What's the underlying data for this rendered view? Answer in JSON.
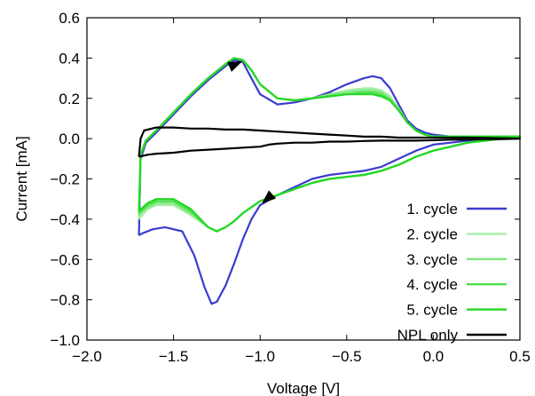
{
  "chart_data": {
    "type": "line",
    "xlabel": "Voltage [V]",
    "ylabel": "Current [mA]",
    "xlim": [
      -2.0,
      0.5
    ],
    "ylim": [
      -1.0,
      0.6
    ],
    "xticks": [
      "−2.0",
      "−1.5",
      "−1.0",
      "−0.5",
      "0.0",
      "0.5"
    ],
    "xtick_values": [
      -2.0,
      -1.5,
      -1.0,
      -0.5,
      0.0,
      0.5
    ],
    "yticks": [
      "−1.0",
      "−0.8",
      "−0.6",
      "−0.4",
      "−0.2",
      "0.0",
      "0.2",
      "0.4",
      "0.6"
    ],
    "ytick_values": [
      -1.0,
      -0.8,
      -0.6,
      -0.4,
      -0.2,
      0.0,
      0.2,
      0.4,
      0.6
    ],
    "grid": false,
    "legend_position": "bottom-right",
    "series": [
      {
        "name": "1. cycle",
        "color": "#3b3bd0",
        "x": [
          -1.7,
          -1.69,
          -1.66,
          -1.6,
          -1.5,
          -1.4,
          -1.3,
          -1.2,
          -1.15,
          -1.1,
          -1.05,
          -1.0,
          -0.9,
          -0.8,
          -0.7,
          -0.6,
          -0.5,
          -0.4,
          -0.35,
          -0.3,
          -0.25,
          -0.2,
          -0.15,
          -0.1,
          -0.05,
          0.0,
          0.1,
          0.2,
          0.3,
          0.4,
          0.5,
          0.4,
          0.3,
          0.2,
          0.1,
          0.0,
          -0.1,
          -0.2,
          -0.3,
          -0.4,
          -0.5,
          -0.6,
          -0.7,
          -0.8,
          -0.9,
          -1.0,
          -1.05,
          -1.1,
          -1.15,
          -1.2,
          -1.25,
          -1.28,
          -1.32,
          -1.38,
          -1.45,
          -1.55,
          -1.62,
          -1.68,
          -1.7
        ],
        "y": [
          -0.48,
          -0.1,
          -0.02,
          0.03,
          0.12,
          0.21,
          0.29,
          0.36,
          0.39,
          0.38,
          0.3,
          0.22,
          0.17,
          0.18,
          0.2,
          0.23,
          0.27,
          0.3,
          0.31,
          0.3,
          0.25,
          0.17,
          0.09,
          0.05,
          0.03,
          0.02,
          0.01,
          0.01,
          0.01,
          0.01,
          0.01,
          0.0,
          0.0,
          -0.01,
          -0.02,
          -0.03,
          -0.06,
          -0.1,
          -0.14,
          -0.16,
          -0.17,
          -0.18,
          -0.2,
          -0.24,
          -0.28,
          -0.33,
          -0.4,
          -0.5,
          -0.62,
          -0.73,
          -0.81,
          -0.82,
          -0.74,
          -0.58,
          -0.46,
          -0.44,
          -0.45,
          -0.47,
          -0.48
        ]
      },
      {
        "name": "2. cycle",
        "color": "#a4eea4",
        "x": [
          -1.7,
          -1.69,
          -1.66,
          -1.6,
          -1.5,
          -1.4,
          -1.3,
          -1.2,
          -1.15,
          -1.1,
          -1.05,
          -1.0,
          -0.9,
          -0.8,
          -0.7,
          -0.6,
          -0.5,
          -0.4,
          -0.35,
          -0.3,
          -0.25,
          -0.2,
          -0.15,
          -0.1,
          -0.05,
          0.0,
          0.1,
          0.2,
          0.3,
          0.4,
          0.5,
          0.4,
          0.3,
          0.2,
          0.1,
          0.0,
          -0.1,
          -0.2,
          -0.3,
          -0.4,
          -0.5,
          -0.6,
          -0.7,
          -0.8,
          -0.9,
          -1.0,
          -1.05,
          -1.1,
          -1.15,
          -1.2,
          -1.25,
          -1.3,
          -1.4,
          -1.5,
          -1.6,
          -1.65,
          -1.7
        ],
        "y": [
          -0.4,
          -0.08,
          -0.01,
          0.04,
          0.13,
          0.22,
          0.3,
          0.37,
          0.4,
          0.39,
          0.34,
          0.27,
          0.2,
          0.19,
          0.2,
          0.22,
          0.24,
          0.25,
          0.25,
          0.24,
          0.21,
          0.15,
          0.08,
          0.04,
          0.02,
          0.01,
          0.01,
          0.01,
          0.01,
          0.01,
          0.01,
          0.0,
          -0.01,
          -0.02,
          -0.04,
          -0.06,
          -0.09,
          -0.13,
          -0.16,
          -0.18,
          -0.19,
          -0.2,
          -0.22,
          -0.25,
          -0.28,
          -0.31,
          -0.34,
          -0.37,
          -0.41,
          -0.44,
          -0.46,
          -0.44,
          -0.38,
          -0.33,
          -0.33,
          -0.35,
          -0.4
        ]
      },
      {
        "name": "3. cycle",
        "color": "#7ee87e",
        "x": [
          -1.7,
          -1.69,
          -1.66,
          -1.6,
          -1.5,
          -1.4,
          -1.3,
          -1.2,
          -1.15,
          -1.1,
          -1.05,
          -1.0,
          -0.9,
          -0.8,
          -0.7,
          -0.6,
          -0.5,
          -0.4,
          -0.35,
          -0.3,
          -0.25,
          -0.2,
          -0.15,
          -0.1,
          -0.05,
          0.0,
          0.1,
          0.2,
          0.3,
          0.4,
          0.5,
          0.4,
          0.3,
          0.2,
          0.1,
          0.0,
          -0.1,
          -0.2,
          -0.3,
          -0.4,
          -0.5,
          -0.6,
          -0.7,
          -0.8,
          -0.9,
          -1.0,
          -1.05,
          -1.1,
          -1.15,
          -1.2,
          -1.25,
          -1.3,
          -1.4,
          -1.5,
          -1.6,
          -1.65,
          -1.7
        ],
        "y": [
          -0.38,
          -0.08,
          -0.01,
          0.04,
          0.13,
          0.22,
          0.3,
          0.37,
          0.4,
          0.39,
          0.34,
          0.27,
          0.2,
          0.19,
          0.2,
          0.22,
          0.23,
          0.24,
          0.24,
          0.23,
          0.2,
          0.15,
          0.08,
          0.04,
          0.02,
          0.01,
          0.01,
          0.01,
          0.01,
          0.01,
          0.01,
          0.0,
          -0.01,
          -0.02,
          -0.04,
          -0.06,
          -0.09,
          -0.13,
          -0.16,
          -0.18,
          -0.19,
          -0.2,
          -0.22,
          -0.25,
          -0.28,
          -0.31,
          -0.34,
          -0.37,
          -0.41,
          -0.44,
          -0.46,
          -0.44,
          -0.37,
          -0.32,
          -0.32,
          -0.34,
          -0.38
        ]
      },
      {
        "name": "4. cycle",
        "color": "#4ee04e",
        "x": [
          -1.7,
          -1.69,
          -1.66,
          -1.6,
          -1.5,
          -1.4,
          -1.3,
          -1.2,
          -1.15,
          -1.1,
          -1.05,
          -1.0,
          -0.9,
          -0.8,
          -0.7,
          -0.6,
          -0.5,
          -0.4,
          -0.35,
          -0.3,
          -0.25,
          -0.2,
          -0.15,
          -0.1,
          -0.05,
          0.0,
          0.1,
          0.2,
          0.3,
          0.4,
          0.5,
          0.4,
          0.3,
          0.2,
          0.1,
          0.0,
          -0.1,
          -0.2,
          -0.3,
          -0.4,
          -0.5,
          -0.6,
          -0.7,
          -0.8,
          -0.9,
          -1.0,
          -1.05,
          -1.1,
          -1.15,
          -1.2,
          -1.25,
          -1.3,
          -1.4,
          -1.5,
          -1.6,
          -1.65,
          -1.7
        ],
        "y": [
          -0.37,
          -0.08,
          -0.01,
          0.04,
          0.13,
          0.22,
          0.3,
          0.37,
          0.4,
          0.39,
          0.34,
          0.27,
          0.2,
          0.19,
          0.2,
          0.21,
          0.22,
          0.23,
          0.23,
          0.22,
          0.19,
          0.14,
          0.08,
          0.04,
          0.02,
          0.01,
          0.01,
          0.01,
          0.01,
          0.01,
          0.01,
          0.0,
          -0.01,
          -0.02,
          -0.04,
          -0.06,
          -0.09,
          -0.13,
          -0.16,
          -0.18,
          -0.19,
          -0.2,
          -0.22,
          -0.25,
          -0.28,
          -0.31,
          -0.34,
          -0.37,
          -0.41,
          -0.44,
          -0.46,
          -0.44,
          -0.36,
          -0.31,
          -0.31,
          -0.33,
          -0.37
        ]
      },
      {
        "name": "5. cycle",
        "color": "#22d822",
        "x": [
          -1.7,
          -1.69,
          -1.66,
          -1.6,
          -1.5,
          -1.4,
          -1.3,
          -1.2,
          -1.15,
          -1.1,
          -1.05,
          -1.0,
          -0.9,
          -0.8,
          -0.7,
          -0.6,
          -0.5,
          -0.4,
          -0.35,
          -0.3,
          -0.25,
          -0.2,
          -0.15,
          -0.1,
          -0.05,
          0.0,
          0.1,
          0.2,
          0.3,
          0.4,
          0.5,
          0.4,
          0.3,
          0.2,
          0.1,
          0.0,
          -0.1,
          -0.2,
          -0.3,
          -0.4,
          -0.5,
          -0.6,
          -0.7,
          -0.8,
          -0.9,
          -1.0,
          -1.05,
          -1.1,
          -1.15,
          -1.2,
          -1.25,
          -1.3,
          -1.4,
          -1.5,
          -1.6,
          -1.65,
          -1.7
        ],
        "y": [
          -0.36,
          -0.08,
          -0.01,
          0.04,
          0.13,
          0.22,
          0.3,
          0.37,
          0.4,
          0.39,
          0.34,
          0.27,
          0.2,
          0.19,
          0.2,
          0.21,
          0.22,
          0.22,
          0.22,
          0.21,
          0.19,
          0.14,
          0.08,
          0.04,
          0.02,
          0.01,
          0.01,
          0.01,
          0.01,
          0.01,
          0.01,
          0.0,
          -0.01,
          -0.02,
          -0.04,
          -0.06,
          -0.09,
          -0.13,
          -0.16,
          -0.18,
          -0.19,
          -0.2,
          -0.22,
          -0.25,
          -0.28,
          -0.31,
          -0.34,
          -0.37,
          -0.41,
          -0.44,
          -0.46,
          -0.44,
          -0.35,
          -0.3,
          -0.3,
          -0.32,
          -0.36
        ]
      },
      {
        "name": "NPL only",
        "color": "#000000",
        "x": [
          -1.7,
          -1.69,
          -1.67,
          -1.6,
          -1.5,
          -1.4,
          -1.3,
          -1.2,
          -1.1,
          -1.0,
          -0.9,
          -0.8,
          -0.7,
          -0.6,
          -0.5,
          -0.4,
          -0.3,
          -0.2,
          -0.1,
          0.0,
          0.1,
          0.2,
          0.3,
          0.4,
          0.5,
          0.4,
          0.3,
          0.2,
          0.1,
          0.0,
          -0.1,
          -0.2,
          -0.3,
          -0.4,
          -0.5,
          -0.6,
          -0.7,
          -0.8,
          -0.9,
          -0.95,
          -1.0,
          -1.1,
          -1.2,
          -1.3,
          -1.4,
          -1.5,
          -1.6,
          -1.65,
          -1.7
        ],
        "y": [
          -0.09,
          0.0,
          0.04,
          0.055,
          0.055,
          0.05,
          0.05,
          0.045,
          0.045,
          0.04,
          0.035,
          0.03,
          0.025,
          0.02,
          0.015,
          0.01,
          0.01,
          0.005,
          0.005,
          0.005,
          0.005,
          0.005,
          0.003,
          0.002,
          0.0,
          -0.002,
          -0.003,
          -0.005,
          -0.005,
          -0.008,
          -0.01,
          -0.01,
          -0.01,
          -0.012,
          -0.015,
          -0.015,
          -0.02,
          -0.02,
          -0.025,
          -0.03,
          -0.04,
          -0.045,
          -0.05,
          -0.055,
          -0.06,
          -0.07,
          -0.075,
          -0.08,
          -0.09
        ]
      }
    ],
    "annotations": [
      {
        "type": "arrow",
        "at": [
          -1.14,
          0.37
        ],
        "toward": [
          -1.1,
          0.385
        ],
        "direction": "up-right"
      },
      {
        "type": "arrow",
        "at": [
          -0.96,
          -0.3
        ],
        "toward": [
          -0.98,
          -0.315
        ],
        "direction": "down-left"
      }
    ]
  }
}
